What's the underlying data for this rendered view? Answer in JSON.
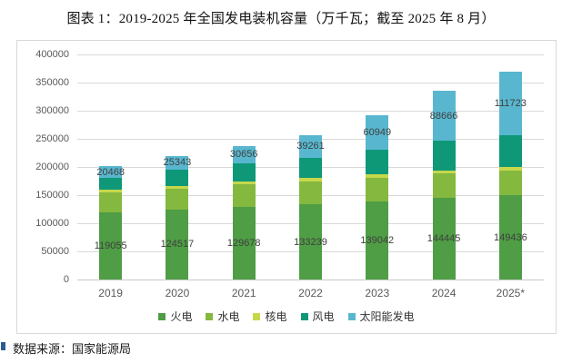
{
  "title": "图表 1：2019-2025 年全国发电装机容量（万千瓦；截至 2025 年 8 月）",
  "source": "数据来源：国家能源局",
  "chart_data": {
    "type": "bar",
    "stacked": true,
    "title": "图表 1：2019-2025 年全国发电装机容量（万千瓦；截至 2025 年 8 月）",
    "categories": [
      "2019",
      "2020",
      "2021",
      "2022",
      "2023",
      "2024",
      "2025*"
    ],
    "series": [
      {
        "id": "thermal",
        "name": "火电",
        "color": "#4f9d45",
        "labeled": true,
        "values": [
          119055,
          124517,
          129678,
          133239,
          139042,
          144445,
          149436
        ]
      },
      {
        "id": "hydro",
        "name": "水电",
        "color": "#85b83f",
        "labeled": false,
        "values": [
          35640,
          37016,
          39092,
          41350,
          42154,
          43595,
          44000
        ]
      },
      {
        "id": "nuclear",
        "name": "核电",
        "color": "#c6d84a",
        "labeled": false,
        "values": [
          4874,
          4989,
          5326,
          5553,
          5691,
          6083,
          6100
        ]
      },
      {
        "id": "wind",
        "name": "风电",
        "color": "#0e9878",
        "labeled": false,
        "values": [
          21005,
          28153,
          32848,
          36544,
          44134,
          52068,
          57700
        ]
      },
      {
        "id": "solar",
        "name": "太阳能发电",
        "color": "#58b7cf",
        "labeled": true,
        "values": [
          20468,
          25343,
          30656,
          39261,
          60949,
          88666,
          111723
        ]
      }
    ],
    "ylim": [
      0,
      400000
    ],
    "yticks": [
      0,
      50000,
      100000,
      150000,
      200000,
      250000,
      300000,
      350000,
      400000
    ],
    "grid": true,
    "legend_position": "bottom",
    "ylabel": "",
    "xlabel": ""
  },
  "colors": {
    "grid": "#d9d9d9",
    "axis_text": "#595959",
    "bar_label_text": "#3f3f3f",
    "panel_border": "#d9d9d9",
    "source_bullet": "#2e5b8f"
  }
}
